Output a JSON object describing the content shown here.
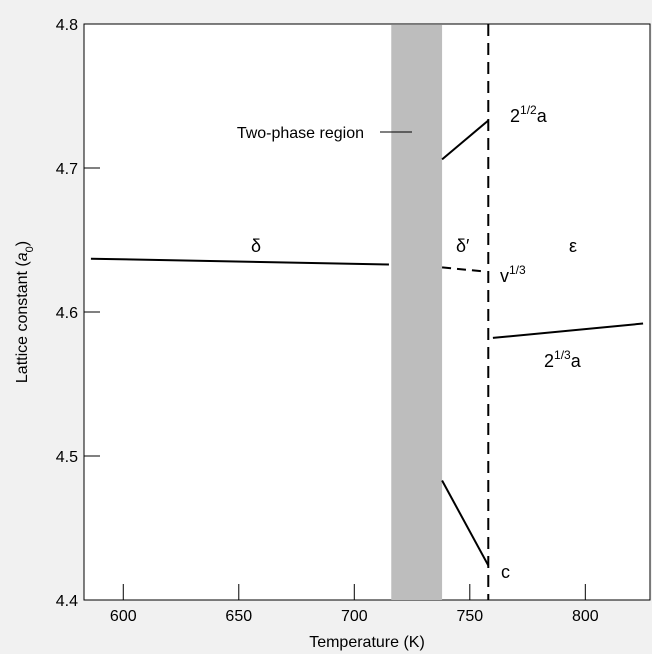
{
  "colors": {
    "background": "#f1f1f1",
    "plot_area": "#ffffff",
    "shaded_region": "#bdbdbd",
    "lines": "#000000"
  },
  "chart_data": {
    "type": "line",
    "title": "",
    "xlabel": "Temperature (K)",
    "ylabel": {
      "text": "Lattice constant (",
      "symbol": "a",
      "sub": "0",
      "close": ")"
    },
    "xlim": [
      583,
      828
    ],
    "ylim": [
      4.4,
      4.8
    ],
    "xticks": [
      600,
      650,
      700,
      750,
      800
    ],
    "yticks": [
      4.4,
      4.5,
      4.6,
      4.7,
      4.8
    ],
    "grid": false,
    "shaded_region": {
      "x": [
        716,
        738
      ],
      "label": "Two-phase region"
    },
    "vertical_marker": {
      "x": 758,
      "style": "dashed"
    },
    "series": [
      {
        "label": "δ",
        "style": "solid",
        "points": [
          [
            586,
            4.637
          ],
          [
            715,
            4.633
          ]
        ]
      },
      {
        "label": "δ′",
        "style": "dashed",
        "points": [
          [
            738,
            4.631
          ],
          [
            757,
            4.628
          ]
        ]
      },
      {
        "label": "2^1/2 a",
        "style": "solid",
        "points": [
          [
            738,
            4.706
          ],
          [
            758,
            4.733
          ]
        ]
      },
      {
        "label": "c",
        "style": "solid",
        "points": [
          [
            738,
            4.483
          ],
          [
            758,
            4.424
          ]
        ]
      },
      {
        "label": "2^1/3 a",
        "style": "solid",
        "points": [
          [
            760,
            4.582
          ],
          [
            825,
            4.592
          ]
        ]
      }
    ],
    "annotations": {
      "delta": "δ",
      "delta_prime": "δ′",
      "epsilon": "ε",
      "v13": {
        "base": "v",
        "sup": "1/3"
      },
      "a_sqrt2": {
        "base": "2",
        "sup": "1/2",
        "tail": "a"
      },
      "a_cbrt2": {
        "base": "2",
        "sup": "1/3",
        "tail": "a"
      },
      "c": "c"
    }
  }
}
